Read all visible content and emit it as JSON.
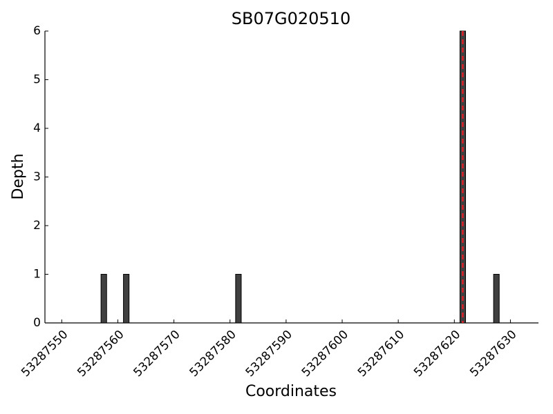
{
  "chart_data": {
    "type": "bar",
    "title": "SB07G020510",
    "x_label": "Coordinates",
    "y_label": "Depth",
    "x": [
      53287557,
      53287561,
      53287581,
      53287621,
      53287627
    ],
    "values": [
      1,
      1,
      1,
      6,
      1
    ],
    "color": "#404040",
    "marker_x": 53287621,
    "marker_color": "#e0202a",
    "xlim": [
      53287547,
      53287635
    ],
    "xticks": [
      53287550,
      53287560,
      53287570,
      53287580,
      53287590,
      53287600,
      53287610,
      53287620,
      53287630
    ],
    "ylim": [
      0,
      6
    ],
    "yticks": [
      0,
      1,
      2,
      3,
      4,
      5,
      6
    ]
  }
}
